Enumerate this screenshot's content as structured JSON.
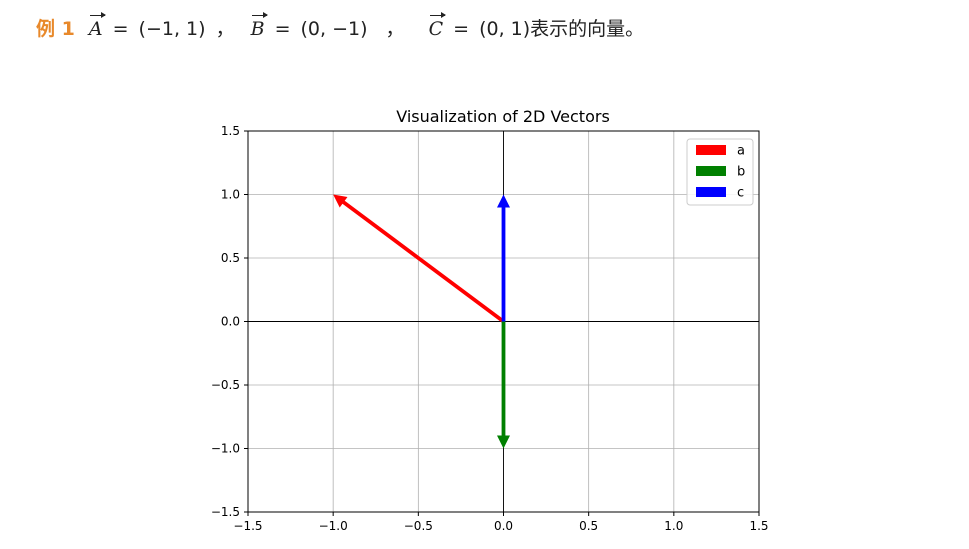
{
  "header": {
    "tag": "例 1",
    "vec_a": "A",
    "val_a": "(−1, 1)",
    "sep1": "，",
    "vec_b": "B",
    "val_b": "(0, −1)",
    "sep2": "，",
    "vec_c": "C",
    "val_c": "(0, 1)",
    "suffix": "表示的向量。",
    "eq": "="
  },
  "chart_data": {
    "type": "quiver",
    "title": "Visualization of 2D Vectors",
    "xlim": [
      -1.5,
      1.5
    ],
    "ylim": [
      -1.5,
      1.5
    ],
    "xticks": [
      -1.5,
      -1.0,
      -0.5,
      0.0,
      0.5,
      1.0,
      1.5
    ],
    "yticks": [
      -1.5,
      -1.0,
      -0.5,
      0.0,
      0.5,
      1.0,
      1.5
    ],
    "xtick_labels": [
      "−1.5",
      "−1.0",
      "−0.5",
      "0.0",
      "0.5",
      "1.0",
      "1.5"
    ],
    "ytick_labels": [
      "−1.5",
      "−1.0",
      "−0.5",
      "0.0",
      "0.5",
      "1.0",
      "1.5"
    ],
    "grid": true,
    "legend_position": "top-right",
    "series": [
      {
        "name": "a",
        "origin": [
          0,
          0
        ],
        "vector": [
          -1,
          1
        ],
        "color": "#ff0000"
      },
      {
        "name": "b",
        "origin": [
          0,
          0
        ],
        "vector": [
          0,
          -1
        ],
        "color": "#008000"
      },
      {
        "name": "c",
        "origin": [
          0,
          0
        ],
        "vector": [
          0,
          1
        ],
        "color": "#0000ff"
      }
    ]
  }
}
